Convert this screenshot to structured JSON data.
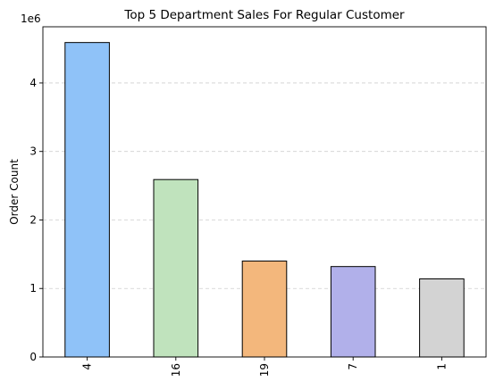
{
  "chart_data": {
    "type": "bar",
    "title": "Top 5 Department Sales For Regular Customer",
    "xlabel": "",
    "ylabel": "Order Count",
    "y_offset_label": "1e6",
    "categories": [
      "4",
      "16",
      "19",
      "7",
      "1"
    ],
    "values": [
      4590000,
      2590000,
      1400000,
      1320000,
      1140000
    ],
    "colors": [
      "#8fc2f8",
      "#c0e3bd",
      "#f3b77c",
      "#b1b0ea",
      "#d3d3d3"
    ],
    "edge_color": "#000000",
    "ylim": [
      0,
      4820000
    ],
    "yticks": [
      0,
      1000000,
      2000000,
      3000000,
      4000000
    ],
    "ytick_labels": [
      "0",
      "1",
      "2",
      "3",
      "4"
    ],
    "x_tick_rotation_deg": 90,
    "grid": {
      "y": true,
      "x": false,
      "style": "dashed"
    },
    "legend": "none"
  }
}
